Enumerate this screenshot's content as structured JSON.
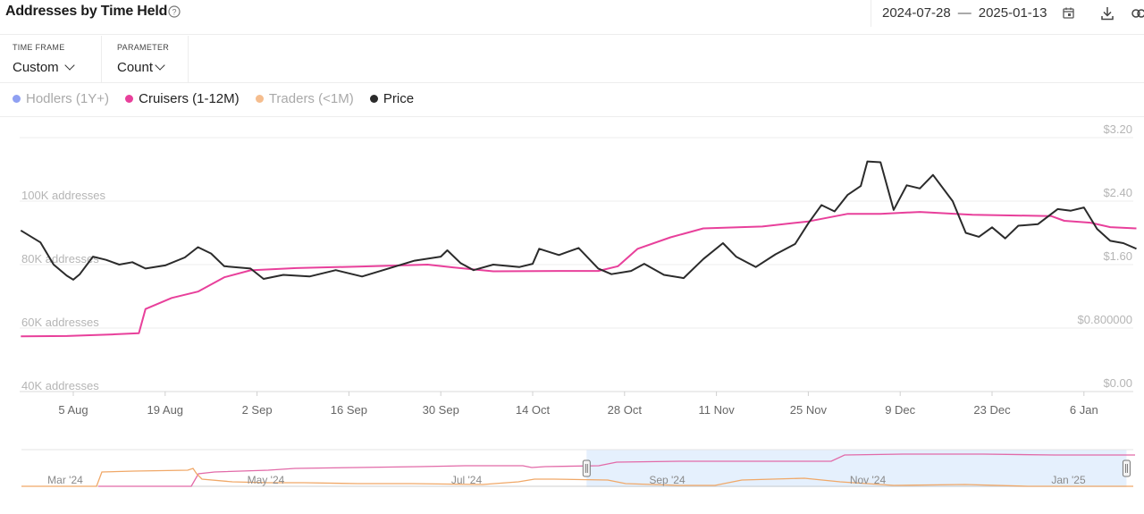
{
  "header": {
    "title": "Addresses by Time Held",
    "date_start": "2024-07-28",
    "date_separator": "—",
    "date_end": "2025-01-13"
  },
  "filters": {
    "timeframe_label": "TIME FRAME",
    "timeframe_value": "Custom",
    "parameter_label": "PARAMETER",
    "parameter_value": "Count"
  },
  "legend": [
    {
      "label": "Hodlers (1Y+)",
      "color": "#7b8ff0",
      "active": false
    },
    {
      "label": "Cruisers (1-12M)",
      "color": "#e8409b",
      "active": true
    },
    {
      "label": "Traders (<1M)",
      "color": "#f3b27a",
      "active": false
    },
    {
      "label": "Price",
      "color": "#2b2b2b",
      "active": true
    }
  ],
  "chart_data": {
    "type": "line",
    "x_ticks": [
      "5 Aug",
      "19 Aug",
      "2 Sep",
      "16 Sep",
      "30 Sep",
      "14 Oct",
      "28 Oct",
      "11 Nov",
      "25 Nov",
      "9 Dec",
      "23 Dec",
      "6 Jan"
    ],
    "y_left_ticks": [
      "40K addresses",
      "60K addresses",
      "80K addresses",
      "100K addresses"
    ],
    "y_left_range": [
      40000,
      120000
    ],
    "y_right_ticks": [
      "$0.00",
      "$0.800000",
      "$1.60",
      "$2.40",
      "$3.20"
    ],
    "y_right_range": [
      0,
      3.2
    ],
    "grid": true,
    "series": [
      {
        "name": "Cruisers (1-12M)",
        "axis": "left",
        "color": "#e8409b",
        "points": [
          [
            "2024-07-28",
            57400
          ],
          [
            "2024-08-04",
            57500
          ],
          [
            "2024-08-11",
            58000
          ],
          [
            "2024-08-15",
            58400
          ],
          [
            "2024-08-16",
            66000
          ],
          [
            "2024-08-20",
            69500
          ],
          [
            "2024-08-24",
            71500
          ],
          [
            "2024-08-28",
            76000
          ],
          [
            "2024-09-01",
            78200
          ],
          [
            "2024-09-08",
            78900
          ],
          [
            "2024-09-18",
            79400
          ],
          [
            "2024-09-28",
            80000
          ],
          [
            "2024-10-02",
            79100
          ],
          [
            "2024-10-08",
            77900
          ],
          [
            "2024-10-18",
            78000
          ],
          [
            "2024-10-24",
            78000
          ],
          [
            "2024-10-27",
            79500
          ],
          [
            "2024-10-30",
            85000
          ],
          [
            "2024-11-04",
            88600
          ],
          [
            "2024-11-09",
            91400
          ],
          [
            "2024-11-18",
            92000
          ],
          [
            "2024-11-25",
            93600
          ],
          [
            "2024-12-01",
            96000
          ],
          [
            "2024-12-06",
            96000
          ],
          [
            "2024-12-12",
            96600
          ],
          [
            "2024-12-20",
            95700
          ],
          [
            "2025-01-01",
            95300
          ],
          [
            "2025-01-03",
            93800
          ],
          [
            "2025-01-07",
            93200
          ],
          [
            "2025-01-10",
            91800
          ],
          [
            "2025-01-14",
            91400
          ]
        ]
      },
      {
        "name": "Price",
        "axis": "right",
        "color": "#2b2b2b",
        "points": [
          [
            "2024-07-28",
            2.03
          ],
          [
            "2024-07-31",
            1.88
          ],
          [
            "2024-08-02",
            1.6
          ],
          [
            "2024-08-04",
            1.46
          ],
          [
            "2024-08-05",
            1.41
          ],
          [
            "2024-08-06",
            1.48
          ],
          [
            "2024-08-08",
            1.7
          ],
          [
            "2024-08-10",
            1.66
          ],
          [
            "2024-08-12",
            1.6
          ],
          [
            "2024-08-14",
            1.63
          ],
          [
            "2024-08-16",
            1.55
          ],
          [
            "2024-08-19",
            1.59
          ],
          [
            "2024-08-22",
            1.69
          ],
          [
            "2024-08-24",
            1.82
          ],
          [
            "2024-08-26",
            1.74
          ],
          [
            "2024-08-28",
            1.58
          ],
          [
            "2024-09-01",
            1.55
          ],
          [
            "2024-09-03",
            1.42
          ],
          [
            "2024-09-06",
            1.47
          ],
          [
            "2024-09-10",
            1.45
          ],
          [
            "2024-09-14",
            1.53
          ],
          [
            "2024-09-18",
            1.45
          ],
          [
            "2024-09-22",
            1.55
          ],
          [
            "2024-09-26",
            1.65
          ],
          [
            "2024-09-30",
            1.7
          ],
          [
            "2024-10-01",
            1.78
          ],
          [
            "2024-10-03",
            1.62
          ],
          [
            "2024-10-05",
            1.53
          ],
          [
            "2024-10-08",
            1.6
          ],
          [
            "2024-10-12",
            1.57
          ],
          [
            "2024-10-14",
            1.61
          ],
          [
            "2024-10-15",
            1.8
          ],
          [
            "2024-10-18",
            1.72
          ],
          [
            "2024-10-21",
            1.81
          ],
          [
            "2024-10-24",
            1.55
          ],
          [
            "2024-10-26",
            1.48
          ],
          [
            "2024-10-29",
            1.52
          ],
          [
            "2024-10-31",
            1.61
          ],
          [
            "2024-11-03",
            1.47
          ],
          [
            "2024-11-06",
            1.43
          ],
          [
            "2024-11-09",
            1.67
          ],
          [
            "2024-11-12",
            1.87
          ],
          [
            "2024-11-14",
            1.7
          ],
          [
            "2024-11-17",
            1.57
          ],
          [
            "2024-11-20",
            1.73
          ],
          [
            "2024-11-23",
            1.86
          ],
          [
            "2024-11-25",
            2.12
          ],
          [
            "2024-11-27",
            2.35
          ],
          [
            "2024-11-29",
            2.27
          ],
          [
            "2024-12-01",
            2.48
          ],
          [
            "2024-12-03",
            2.59
          ],
          [
            "2024-12-04",
            2.9
          ],
          [
            "2024-12-06",
            2.89
          ],
          [
            "2024-12-08",
            2.29
          ],
          [
            "2024-12-10",
            2.6
          ],
          [
            "2024-12-12",
            2.56
          ],
          [
            "2024-12-14",
            2.73
          ],
          [
            "2024-12-17",
            2.4
          ],
          [
            "2024-12-19",
            2.0
          ],
          [
            "2024-12-21",
            1.95
          ],
          [
            "2024-12-23",
            2.07
          ],
          [
            "2024-12-25",
            1.93
          ],
          [
            "2024-12-27",
            2.09
          ],
          [
            "2024-12-30",
            2.11
          ],
          [
            "2025-01-02",
            2.3
          ],
          [
            "2025-01-04",
            2.28
          ],
          [
            "2025-01-06",
            2.32
          ],
          [
            "2025-01-08",
            2.05
          ],
          [
            "2025-01-10",
            1.9
          ],
          [
            "2025-01-12",
            1.87
          ],
          [
            "2025-01-14",
            1.8
          ]
        ]
      }
    ]
  },
  "navigator": {
    "x_ticks": [
      "Mar '24",
      "May '24",
      "Jul '24",
      "Sep '24",
      "Nov '24",
      "Jan '25"
    ],
    "selection_start": "2024-07-28",
    "selection_end": "2025-01-13",
    "pink_color": "#e26aa8",
    "orange_color": "#f0a868",
    "selection_fill": "#e5f0fd"
  }
}
